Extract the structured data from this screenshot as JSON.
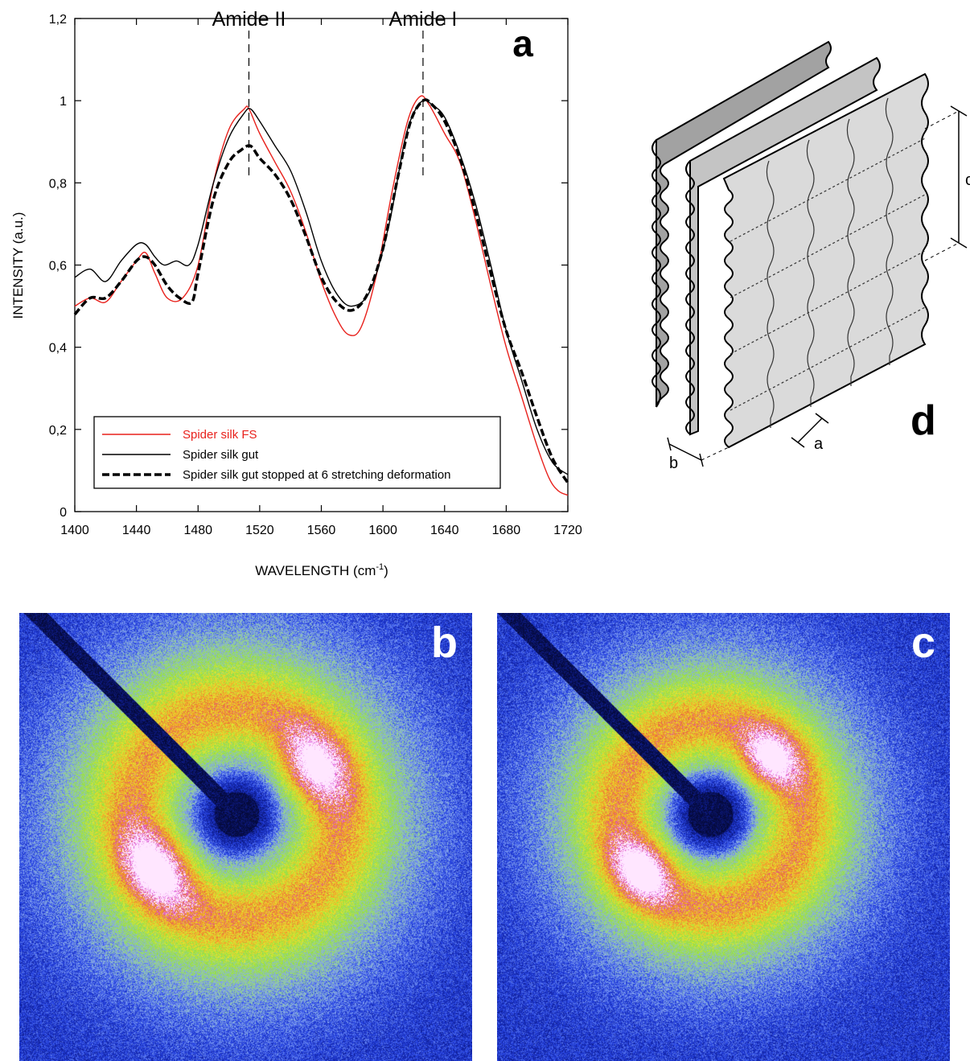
{
  "chart_data": {
    "type": "line",
    "panel_label": "a",
    "xlabel": "WAVELENGTH (cm",
    "xlabel_superscript": "-1",
    "xlabel_suffix": ")",
    "ylabel": "INTENSITY (a.u.)",
    "xlim": [
      1400,
      1720
    ],
    "ylim": [
      0,
      1.2
    ],
    "xticks": [
      "1400",
      "1440",
      "1480",
      "1520",
      "1560",
      "1600",
      "1640",
      "1680",
      "1720"
    ],
    "xtick_values": [
      1400,
      1440,
      1480,
      1520,
      1560,
      1600,
      1640,
      1680,
      1720
    ],
    "yticks": [
      "0",
      "0,2",
      "0,4",
      "0,6",
      "0,8",
      "1",
      "1,2"
    ],
    "ytick_values": [
      0,
      0.2,
      0.4,
      0.6,
      0.8,
      1.0,
      1.2
    ],
    "grid": false,
    "legend_position": "bottom-left",
    "annotations": [
      {
        "text": "Amide II",
        "x": 1513
      },
      {
        "text": "Amide I",
        "x": 1626
      }
    ],
    "series": [
      {
        "name": "Spider silk FS",
        "color": "#e8211c",
        "style": "solid",
        "x": [
          1400,
          1410,
          1420,
          1430,
          1440,
          1446,
          1452,
          1460,
          1470,
          1480,
          1490,
          1500,
          1510,
          1513,
          1520,
          1530,
          1540,
          1550,
          1560,
          1570,
          1578,
          1586,
          1596,
          1606,
          1616,
          1624,
          1630,
          1640,
          1650,
          1660,
          1670,
          1680,
          1690,
          1700,
          1708,
          1714,
          1720
        ],
        "y": [
          0.5,
          0.52,
          0.51,
          0.56,
          0.61,
          0.63,
          0.58,
          0.52,
          0.52,
          0.6,
          0.8,
          0.93,
          0.98,
          0.98,
          0.92,
          0.85,
          0.78,
          0.68,
          0.56,
          0.47,
          0.43,
          0.45,
          0.58,
          0.78,
          0.95,
          1.01,
          0.99,
          0.92,
          0.85,
          0.71,
          0.55,
          0.4,
          0.28,
          0.16,
          0.08,
          0.05,
          0.04
        ]
      },
      {
        "name": "Spider silk gut",
        "color": "#000000",
        "style": "solid",
        "x": [
          1400,
          1410,
          1420,
          1430,
          1440,
          1446,
          1452,
          1458,
          1466,
          1474,
          1480,
          1490,
          1500,
          1510,
          1514,
          1520,
          1530,
          1540,
          1550,
          1560,
          1570,
          1580,
          1592,
          1604,
          1614,
          1620,
          1626,
          1632,
          1640,
          1650,
          1660,
          1670,
          1680,
          1690,
          1700,
          1710,
          1720
        ],
        "y": [
          0.57,
          0.59,
          0.56,
          0.61,
          0.65,
          0.65,
          0.62,
          0.6,
          0.61,
          0.6,
          0.65,
          0.8,
          0.91,
          0.97,
          0.98,
          0.95,
          0.89,
          0.83,
          0.73,
          0.61,
          0.53,
          0.5,
          0.54,
          0.7,
          0.9,
          0.97,
          1.0,
          0.99,
          0.96,
          0.87,
          0.75,
          0.6,
          0.44,
          0.32,
          0.2,
          0.12,
          0.09
        ]
      },
      {
        "name": "Spider silk gut stopped at 6 stretching deformation",
        "color": "#000000",
        "style": "dashed",
        "x": [
          1400,
          1410,
          1420,
          1430,
          1440,
          1446,
          1452,
          1460,
          1468,
          1476,
          1480,
          1490,
          1500,
          1508,
          1514,
          1520,
          1530,
          1540,
          1550,
          1560,
          1570,
          1580,
          1590,
          1600,
          1610,
          1618,
          1626,
          1632,
          1640,
          1650,
          1660,
          1670,
          1680,
          1690,
          1700,
          1710,
          1720
        ],
        "y": [
          0.48,
          0.52,
          0.52,
          0.56,
          0.61,
          0.62,
          0.6,
          0.55,
          0.52,
          0.51,
          0.58,
          0.76,
          0.85,
          0.88,
          0.89,
          0.86,
          0.82,
          0.76,
          0.67,
          0.57,
          0.51,
          0.49,
          0.53,
          0.64,
          0.82,
          0.95,
          1.0,
          0.99,
          0.95,
          0.86,
          0.73,
          0.58,
          0.44,
          0.34,
          0.23,
          0.13,
          0.07
        ]
      }
    ]
  },
  "diagram": {
    "panel_label": "d",
    "labels": {
      "a": "a",
      "b": "b",
      "c": "c"
    }
  },
  "xrd_panels": [
    {
      "panel_label": "b"
    },
    {
      "panel_label": "c"
    }
  ]
}
